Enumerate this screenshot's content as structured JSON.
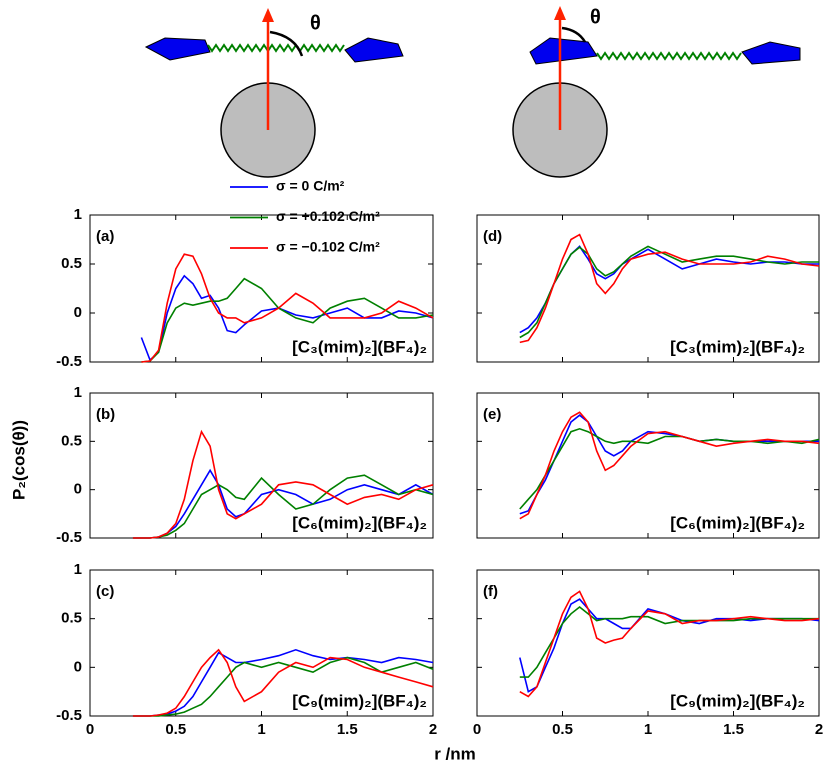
{
  "xlabel": "r /nm",
  "ylabel": "P₂(cos(θ))",
  "diagram": {
    "theta": [
      "θ",
      "θ"
    ]
  },
  "chart_data": [
    {
      "type": "line",
      "label": "(a)",
      "annotation": "[C₃(mim)₂](BF₄)₂",
      "xlim": [
        0,
        2
      ],
      "ylim": [
        -0.5,
        1
      ],
      "xticks": [
        0,
        0.5,
        1,
        1.5,
        2
      ],
      "yticks": [
        -0.5,
        0,
        0.5,
        1
      ],
      "x": [
        0.25,
        0.3,
        0.35,
        0.4,
        0.45,
        0.5,
        0.55,
        0.6,
        0.65,
        0.7,
        0.75,
        0.8,
        0.85,
        0.9,
        1.0,
        1.1,
        1.2,
        1.3,
        1.4,
        1.5,
        1.6,
        1.7,
        1.8,
        1.9,
        2.0
      ],
      "series": [
        {
          "name": "σ = 0  C/m²",
          "color": "#0000ff",
          "values": [
            null,
            -0.25,
            -0.48,
            -0.4,
            0.0,
            0.25,
            0.38,
            0.3,
            0.15,
            0.18,
            0.05,
            -0.18,
            -0.2,
            -0.12,
            0.02,
            0.05,
            -0.02,
            -0.05,
            0.0,
            0.05,
            -0.05,
            -0.05,
            0.02,
            0.0,
            -0.05
          ]
        },
        {
          "name": "σ = +0.102 C/m²",
          "color": "#008000",
          "values": [
            null,
            -0.5,
            -0.49,
            -0.4,
            -0.1,
            0.05,
            0.1,
            0.08,
            0.1,
            0.12,
            0.12,
            0.15,
            0.25,
            0.35,
            0.25,
            0.05,
            -0.05,
            -0.1,
            0.05,
            0.12,
            0.15,
            0.05,
            -0.05,
            -0.05,
            -0.02
          ]
        },
        {
          "name": "σ = −0.102 C/m²",
          "color": "#ff0000",
          "values": [
            null,
            -0.5,
            -0.49,
            -0.38,
            0.1,
            0.45,
            0.6,
            0.58,
            0.4,
            0.15,
            0.0,
            -0.05,
            -0.05,
            -0.1,
            -0.05,
            0.05,
            0.2,
            0.1,
            -0.05,
            -0.05,
            -0.05,
            0.0,
            0.12,
            0.05,
            -0.05
          ]
        }
      ]
    },
    {
      "type": "line",
      "label": "(b)",
      "annotation": "[C₆(mim)₂](BF₄)₂",
      "xlim": [
        0,
        2
      ],
      "ylim": [
        -0.5,
        1
      ],
      "xticks": [
        0,
        0.5,
        1,
        1.5,
        2
      ],
      "yticks": [
        -0.5,
        0,
        0.5,
        1
      ],
      "x": [
        0.25,
        0.3,
        0.35,
        0.4,
        0.45,
        0.5,
        0.55,
        0.6,
        0.65,
        0.7,
        0.75,
        0.8,
        0.85,
        0.9,
        1.0,
        1.1,
        1.2,
        1.3,
        1.4,
        1.5,
        1.6,
        1.7,
        1.8,
        1.9,
        2.0
      ],
      "series": [
        {
          "color": "#0000ff",
          "values": [
            -0.5,
            -0.5,
            -0.5,
            -0.49,
            -0.45,
            -0.38,
            -0.25,
            -0.1,
            0.05,
            0.2,
            0.05,
            -0.2,
            -0.28,
            -0.25,
            -0.05,
            0.0,
            -0.05,
            -0.15,
            -0.1,
            0.0,
            0.05,
            0.0,
            -0.05,
            0.05,
            -0.05
          ]
        },
        {
          "color": "#008000",
          "values": [
            -0.5,
            -0.5,
            -0.5,
            -0.49,
            -0.47,
            -0.42,
            -0.35,
            -0.2,
            -0.05,
            0.0,
            0.05,
            0.0,
            -0.08,
            -0.1,
            0.12,
            -0.05,
            -0.2,
            -0.15,
            0.0,
            0.12,
            0.15,
            0.05,
            -0.05,
            0.0,
            -0.05
          ]
        },
        {
          "color": "#ff0000",
          "values": [
            -0.5,
            -0.5,
            -0.5,
            -0.49,
            -0.45,
            -0.35,
            -0.1,
            0.3,
            0.6,
            0.45,
            0.0,
            -0.25,
            -0.3,
            -0.25,
            -0.15,
            0.05,
            0.08,
            0.05,
            -0.05,
            -0.15,
            -0.08,
            -0.05,
            -0.1,
            0.0,
            0.05
          ]
        }
      ]
    },
    {
      "type": "line",
      "label": "(c)",
      "annotation": "[C₉(mim)₂](BF₄)₂",
      "xlim": [
        0,
        2
      ],
      "ylim": [
        -0.5,
        1
      ],
      "xticks": [
        0,
        0.5,
        1,
        1.5,
        2
      ],
      "yticks": [
        -0.5,
        0,
        0.5,
        1
      ],
      "x": [
        0.25,
        0.3,
        0.35,
        0.4,
        0.45,
        0.5,
        0.55,
        0.6,
        0.65,
        0.7,
        0.75,
        0.8,
        0.85,
        0.9,
        1.0,
        1.1,
        1.2,
        1.3,
        1.4,
        1.5,
        1.6,
        1.7,
        1.8,
        1.9,
        2.0
      ],
      "series": [
        {
          "color": "#0000ff",
          "values": [
            -0.5,
            -0.5,
            -0.5,
            -0.49,
            -0.48,
            -0.45,
            -0.4,
            -0.3,
            -0.15,
            0.0,
            0.15,
            0.1,
            0.05,
            0.05,
            0.08,
            0.12,
            0.18,
            0.12,
            0.08,
            0.1,
            0.08,
            0.05,
            0.1,
            0.08,
            0.05
          ]
        },
        {
          "color": "#008000",
          "values": [
            -0.5,
            -0.5,
            -0.5,
            -0.5,
            -0.49,
            -0.48,
            -0.46,
            -0.42,
            -0.38,
            -0.3,
            -0.2,
            -0.1,
            0.0,
            0.05,
            0.0,
            0.05,
            0.0,
            -0.05,
            0.05,
            0.1,
            0.05,
            -0.05,
            0.0,
            0.05,
            -0.02
          ]
        },
        {
          "color": "#ff0000",
          "values": [
            -0.5,
            -0.5,
            -0.5,
            -0.49,
            -0.47,
            -0.42,
            -0.3,
            -0.15,
            0.0,
            0.1,
            0.18,
            0.05,
            -0.2,
            -0.35,
            -0.25,
            -0.05,
            0.05,
            0.0,
            0.1,
            0.08,
            0.0,
            -0.05,
            -0.1,
            -0.15,
            -0.2
          ]
        }
      ]
    },
    {
      "type": "line",
      "label": "(d)",
      "annotation": "[C₃(mim)₂](BF₄)₂",
      "xlim": [
        0,
        2
      ],
      "ylim": [
        -0.5,
        1
      ],
      "xticks": [
        0,
        0.5,
        1,
        1.5,
        2
      ],
      "yticks": [
        -0.5,
        0,
        0.5,
        1
      ],
      "x": [
        0.25,
        0.3,
        0.35,
        0.4,
        0.45,
        0.5,
        0.55,
        0.6,
        0.65,
        0.7,
        0.75,
        0.8,
        0.85,
        0.9,
        1.0,
        1.1,
        1.2,
        1.3,
        1.4,
        1.5,
        1.6,
        1.7,
        1.8,
        1.9,
        2.0
      ],
      "series": [
        {
          "color": "#0000ff",
          "values": [
            -0.2,
            -0.15,
            -0.05,
            0.1,
            0.3,
            0.45,
            0.6,
            0.68,
            0.55,
            0.4,
            0.35,
            0.4,
            0.5,
            0.55,
            0.65,
            0.55,
            0.45,
            0.5,
            0.55,
            0.52,
            0.5,
            0.52,
            0.52,
            0.5,
            0.5
          ]
        },
        {
          "color": "#008000",
          "values": [
            -0.25,
            -0.2,
            -0.1,
            0.1,
            0.3,
            0.45,
            0.6,
            0.67,
            0.6,
            0.45,
            0.38,
            0.42,
            0.5,
            0.58,
            0.68,
            0.6,
            0.52,
            0.55,
            0.58,
            0.58,
            0.55,
            0.52,
            0.5,
            0.52,
            0.52
          ]
        },
        {
          "color": "#ff0000",
          "values": [
            -0.3,
            -0.28,
            -0.15,
            0.05,
            0.3,
            0.55,
            0.75,
            0.8,
            0.6,
            0.3,
            0.2,
            0.3,
            0.45,
            0.55,
            0.6,
            0.62,
            0.55,
            0.5,
            0.5,
            0.5,
            0.52,
            0.58,
            0.55,
            0.5,
            0.48
          ]
        }
      ]
    },
    {
      "type": "line",
      "label": "(e)",
      "annotation": "[C₆(mim)₂](BF₄)₂",
      "xlim": [
        0,
        2
      ],
      "ylim": [
        -0.5,
        1
      ],
      "xticks": [
        0,
        0.5,
        1,
        1.5,
        2
      ],
      "yticks": [
        -0.5,
        0,
        0.5,
        1
      ],
      "x": [
        0.25,
        0.3,
        0.35,
        0.4,
        0.45,
        0.5,
        0.55,
        0.6,
        0.65,
        0.7,
        0.75,
        0.8,
        0.85,
        0.9,
        1.0,
        1.1,
        1.2,
        1.3,
        1.4,
        1.5,
        1.6,
        1.7,
        1.8,
        1.9,
        2.0
      ],
      "series": [
        {
          "color": "#0000ff",
          "values": [
            -0.25,
            -0.22,
            -0.05,
            0.1,
            0.3,
            0.5,
            0.7,
            0.77,
            0.7,
            0.55,
            0.4,
            0.35,
            0.4,
            0.5,
            0.6,
            0.58,
            0.55,
            0.5,
            0.52,
            0.5,
            0.5,
            0.5,
            0.5,
            0.5,
            0.5
          ]
        },
        {
          "color": "#008000",
          "values": [
            -0.2,
            -0.1,
            0.0,
            0.15,
            0.3,
            0.45,
            0.6,
            0.63,
            0.6,
            0.55,
            0.5,
            0.48,
            0.5,
            0.5,
            0.48,
            0.55,
            0.55,
            0.5,
            0.52,
            0.5,
            0.5,
            0.48,
            0.5,
            0.48,
            0.52
          ]
        },
        {
          "color": "#ff0000",
          "values": [
            -0.3,
            -0.25,
            -0.05,
            0.15,
            0.4,
            0.6,
            0.75,
            0.8,
            0.7,
            0.4,
            0.2,
            0.25,
            0.35,
            0.45,
            0.58,
            0.6,
            0.55,
            0.5,
            0.45,
            0.48,
            0.5,
            0.52,
            0.5,
            0.5,
            0.48
          ]
        }
      ]
    },
    {
      "type": "line",
      "label": "(f)",
      "annotation": "[C₉(mim)₂](BF₄)₂",
      "xlim": [
        0,
        2
      ],
      "ylim": [
        -0.5,
        1
      ],
      "xticks": [
        0,
        0.5,
        1,
        1.5,
        2
      ],
      "yticks": [
        -0.5,
        0,
        0.5,
        1
      ],
      "x": [
        0.25,
        0.3,
        0.35,
        0.4,
        0.45,
        0.5,
        0.55,
        0.6,
        0.65,
        0.7,
        0.75,
        0.8,
        0.85,
        0.9,
        1.0,
        1.1,
        1.2,
        1.3,
        1.4,
        1.5,
        1.6,
        1.7,
        1.8,
        1.9,
        2.0
      ],
      "series": [
        {
          "color": "#0000ff",
          "values": [
            0.1,
            -0.25,
            -0.2,
            0.0,
            0.2,
            0.45,
            0.65,
            0.7,
            0.6,
            0.5,
            0.5,
            0.45,
            0.4,
            0.4,
            0.6,
            0.55,
            0.48,
            0.45,
            0.5,
            0.5,
            0.48,
            0.5,
            0.5,
            0.5,
            0.48
          ]
        },
        {
          "color": "#008000",
          "values": [
            -0.1,
            -0.1,
            0.0,
            0.15,
            0.3,
            0.45,
            0.55,
            0.62,
            0.55,
            0.48,
            0.5,
            0.5,
            0.5,
            0.52,
            0.52,
            0.45,
            0.48,
            0.48,
            0.48,
            0.48,
            0.5,
            0.5,
            0.5,
            0.5,
            0.5
          ]
        },
        {
          "color": "#ff0000",
          "values": [
            -0.25,
            -0.3,
            -0.2,
            0.05,
            0.3,
            0.55,
            0.72,
            0.78,
            0.6,
            0.3,
            0.25,
            0.28,
            0.3,
            0.4,
            0.58,
            0.55,
            0.45,
            0.48,
            0.48,
            0.5,
            0.52,
            0.5,
            0.48,
            0.48,
            0.5
          ]
        }
      ]
    }
  ]
}
